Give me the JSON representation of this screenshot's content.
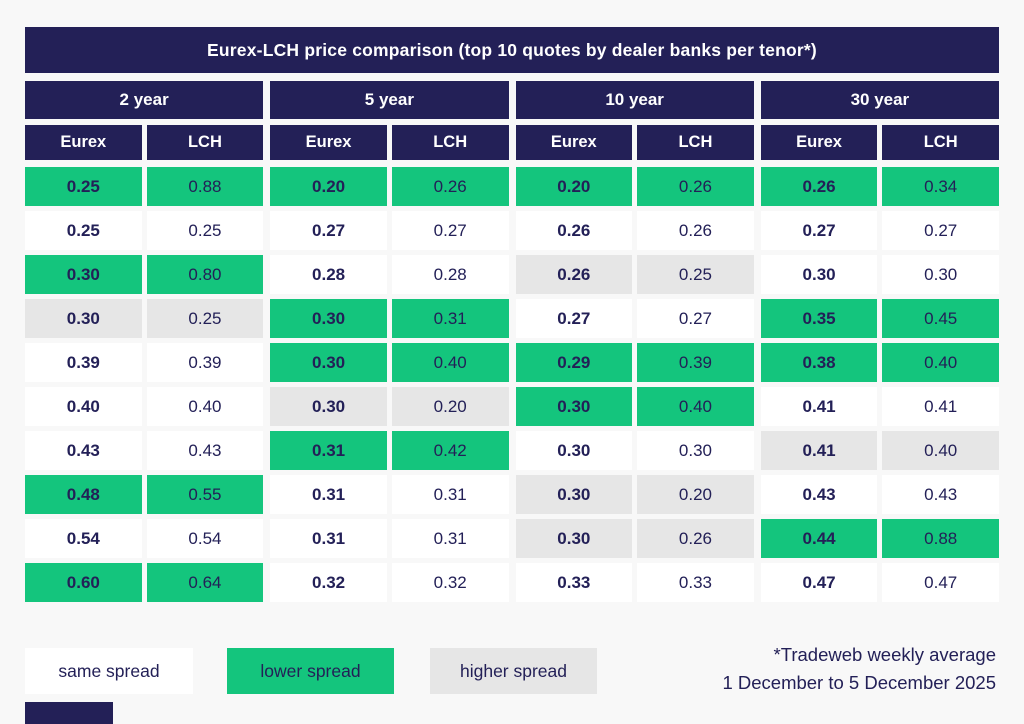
{
  "colors": {
    "navy": "#232057",
    "green": "#14c57d",
    "gray": "#e6e6e6",
    "background": "#f8f8f8",
    "white": "#ffffff"
  },
  "chart_data": {
    "type": "table",
    "title": "Eurex-LCH price comparison (top 10 quotes by dealer banks per tenor*)",
    "tenors": [
      "2 year",
      "5 year",
      "10 year",
      "30 year"
    ],
    "subheaders": [
      "Eurex",
      "LCH"
    ],
    "status_meaning": {
      "same": "same spread (white)",
      "lower": "lower spread (green)",
      "higher": "higher spread (gray)"
    },
    "groups": [
      {
        "tenor": "2 year",
        "rows": [
          {
            "eurex": "0.25",
            "lch": "0.88",
            "status": "lower"
          },
          {
            "eurex": "0.25",
            "lch": "0.25",
            "status": "same"
          },
          {
            "eurex": "0.30",
            "lch": "0.80",
            "status": "lower"
          },
          {
            "eurex": "0.30",
            "lch": "0.25",
            "status": "higher"
          },
          {
            "eurex": "0.39",
            "lch": "0.39",
            "status": "same"
          },
          {
            "eurex": "0.40",
            "lch": "0.40",
            "status": "same"
          },
          {
            "eurex": "0.43",
            "lch": "0.43",
            "status": "same"
          },
          {
            "eurex": "0.48",
            "lch": "0.55",
            "status": "lower"
          },
          {
            "eurex": "0.54",
            "lch": "0.54",
            "status": "same"
          },
          {
            "eurex": "0.60",
            "lch": "0.64",
            "status": "lower"
          }
        ]
      },
      {
        "tenor": "5 year",
        "rows": [
          {
            "eurex": "0.20",
            "lch": "0.26",
            "status": "lower"
          },
          {
            "eurex": "0.27",
            "lch": "0.27",
            "status": "same"
          },
          {
            "eurex": "0.28",
            "lch": "0.28",
            "status": "same"
          },
          {
            "eurex": "0.30",
            "lch": "0.31",
            "status": "lower"
          },
          {
            "eurex": "0.30",
            "lch": "0.40",
            "status": "lower"
          },
          {
            "eurex": "0.30",
            "lch": "0.20",
            "status": "higher"
          },
          {
            "eurex": "0.31",
            "lch": "0.42",
            "status": "lower"
          },
          {
            "eurex": "0.31",
            "lch": "0.31",
            "status": "same"
          },
          {
            "eurex": "0.31",
            "lch": "0.31",
            "status": "same"
          },
          {
            "eurex": "0.32",
            "lch": "0.32",
            "status": "same"
          }
        ]
      },
      {
        "tenor": "10 year",
        "rows": [
          {
            "eurex": "0.20",
            "lch": "0.26",
            "status": "lower"
          },
          {
            "eurex": "0.26",
            "lch": "0.26",
            "status": "same"
          },
          {
            "eurex": "0.26",
            "lch": "0.25",
            "status": "higher"
          },
          {
            "eurex": "0.27",
            "lch": "0.27",
            "status": "same"
          },
          {
            "eurex": "0.29",
            "lch": "0.39",
            "status": "lower"
          },
          {
            "eurex": "0.30",
            "lch": "0.40",
            "status": "lower"
          },
          {
            "eurex": "0.30",
            "lch": "0.30",
            "status": "same"
          },
          {
            "eurex": "0.30",
            "lch": "0.20",
            "status": "higher"
          },
          {
            "eurex": "0.30",
            "lch": "0.26",
            "status": "higher"
          },
          {
            "eurex": "0.33",
            "lch": "0.33",
            "status": "same"
          }
        ]
      },
      {
        "tenor": "30 year",
        "rows": [
          {
            "eurex": "0.26",
            "lch": "0.34",
            "status": "lower"
          },
          {
            "eurex": "0.27",
            "lch": "0.27",
            "status": "same"
          },
          {
            "eurex": "0.30",
            "lch": "0.30",
            "status": "same"
          },
          {
            "eurex": "0.35",
            "lch": "0.45",
            "status": "lower"
          },
          {
            "eurex": "0.38",
            "lch": "0.40",
            "status": "lower"
          },
          {
            "eurex": "0.41",
            "lch": "0.41",
            "status": "same"
          },
          {
            "eurex": "0.41",
            "lch": "0.40",
            "status": "higher"
          },
          {
            "eurex": "0.43",
            "lch": "0.43",
            "status": "same"
          },
          {
            "eurex": "0.44",
            "lch": "0.88",
            "status": "lower"
          },
          {
            "eurex": "0.47",
            "lch": "0.47",
            "status": "same"
          }
        ]
      }
    ],
    "legend": [
      {
        "label": "same spread",
        "status": "same"
      },
      {
        "label": "lower spread",
        "status": "lower"
      },
      {
        "label": "higher spread",
        "status": "higher"
      }
    ],
    "footnote_line1": "*Tradeweb weekly average",
    "footnote_line2": "1 December to 5 December 2025"
  }
}
